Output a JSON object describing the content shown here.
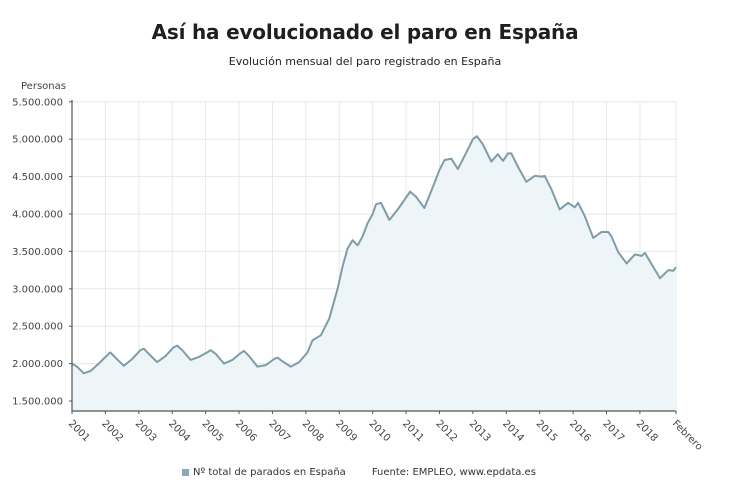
{
  "chart_data": {
    "type": "area",
    "title": "Así ha evolucionado el paro en España",
    "subtitle": "Evolución mensual del paro registrado en España",
    "ylabel": "Personas",
    "xlabel": "",
    "ylim": [
      1400000,
      5500000
    ],
    "yticks": [
      1500000,
      2000000,
      2500000,
      3000000,
      3500000,
      4000000,
      4500000,
      5000000,
      5500000
    ],
    "ytick_labels": [
      "1.500.000",
      "2.000.000",
      "2.500.000",
      "3.000.000",
      "3.500.000",
      "4.000.000",
      "4.500.000",
      "5.000.000",
      "5.500.000"
    ],
    "xtick_labels": [
      "2001",
      "2002",
      "2003",
      "2004",
      "2005",
      "2006",
      "2007",
      "2008",
      "2009",
      "2010",
      "2011",
      "2012",
      "2013",
      "2014",
      "2015",
      "2016",
      "2017",
      "2018",
      "Febrero"
    ],
    "xlim": [
      2001.0,
      2019.08
    ],
    "grid": true,
    "series": [
      {
        "name": "Nº total de parados en España",
        "color": "#7f9ca8",
        "fill": "#eef5f9",
        "x": [
          2001.0,
          2001.15,
          2001.35,
          2001.55,
          2001.8,
          2002.05,
          2002.15,
          2002.3,
          2002.55,
          2002.8,
          2003.05,
          2003.15,
          2003.3,
          2003.55,
          2003.8,
          2004.05,
          2004.15,
          2004.3,
          2004.55,
          2004.8,
          2005.05,
          2005.15,
          2005.3,
          2005.55,
          2005.8,
          2006.05,
          2006.15,
          2006.3,
          2006.55,
          2006.8,
          2007.05,
          2007.15,
          2007.3,
          2007.55,
          2007.8,
          2008.05,
          2008.2,
          2008.45,
          2008.7,
          2008.95,
          2009.1,
          2009.25,
          2009.4,
          2009.55,
          2009.7,
          2009.85,
          2010.0,
          2010.1,
          2010.25,
          2010.5,
          2010.75,
          2011.0,
          2011.12,
          2011.3,
          2011.55,
          2011.8,
          2012.0,
          2012.15,
          2012.35,
          2012.55,
          2012.8,
          2013.0,
          2013.12,
          2013.3,
          2013.55,
          2013.75,
          2013.9,
          2014.05,
          2014.15,
          2014.35,
          2014.6,
          2014.85,
          2015.05,
          2015.15,
          2015.35,
          2015.6,
          2015.85,
          2016.05,
          2016.15,
          2016.35,
          2016.6,
          2016.85,
          2017.05,
          2017.15,
          2017.35,
          2017.6,
          2017.85,
          2018.05,
          2018.15,
          2018.35,
          2018.6,
          2018.85,
          2019.0,
          2019.08
        ],
        "values": [
          2000000,
          1960000,
          1870000,
          1900000,
          2000000,
          2110000,
          2150000,
          2080000,
          1970000,
          2060000,
          2180000,
          2200000,
          2130000,
          2020000,
          2100000,
          2220000,
          2240000,
          2180000,
          2050000,
          2090000,
          2150000,
          2180000,
          2130000,
          2000000,
          2050000,
          2140000,
          2170000,
          2100000,
          1960000,
          1980000,
          2060000,
          2080000,
          2030000,
          1960000,
          2020000,
          2150000,
          2310000,
          2380000,
          2600000,
          3000000,
          3300000,
          3540000,
          3650000,
          3580000,
          3700000,
          3880000,
          4000000,
          4130000,
          4150000,
          3920000,
          4060000,
          4220000,
          4300000,
          4230000,
          4080000,
          4360000,
          4590000,
          4720000,
          4740000,
          4600000,
          4820000,
          5000000,
          5040000,
          4930000,
          4700000,
          4800000,
          4710000,
          4810000,
          4810000,
          4630000,
          4430000,
          4510000,
          4500000,
          4510000,
          4330000,
          4060000,
          4150000,
          4090000,
          4150000,
          3970000,
          3680000,
          3760000,
          3760000,
          3700000,
          3490000,
          3340000,
          3460000,
          3440000,
          3480000,
          3330000,
          3140000,
          3250000,
          3240000,
          3290000
        ]
      }
    ],
    "legend": "bottom-center",
    "source": "Fuente: EMPLEO, www.epdata.es"
  }
}
